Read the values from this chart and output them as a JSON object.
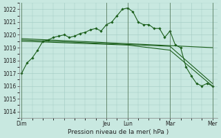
{
  "bg_color": "#c8e8e0",
  "grid_color": "#a0c8c0",
  "line_color": "#1a5e1a",
  "xlabel": "Pression niveau de la mer( hPa )",
  "ylim": [
    1013.5,
    1022.5
  ],
  "yticks": [
    1014,
    1015,
    1016,
    1017,
    1018,
    1019,
    1020,
    1021,
    1022
  ],
  "day_labels": [
    "Dim",
    "",
    "Jeu",
    "Lun",
    "",
    "Mar",
    "",
    "Mer"
  ],
  "day_positions": [
    0,
    8,
    16,
    20,
    24,
    28,
    32,
    36
  ],
  "xlim": [
    -0.5,
    37
  ],
  "vlines": [
    0,
    16,
    20,
    28,
    36
  ],
  "main_x": [
    0,
    1,
    2,
    3,
    4,
    5,
    6,
    7,
    8,
    9,
    10,
    11,
    12,
    13,
    14,
    15,
    16,
    17,
    18,
    19,
    20,
    21,
    22,
    23,
    24,
    25,
    26,
    27,
    28,
    29,
    30,
    31,
    32,
    33,
    34,
    35,
    36
  ],
  "main_y": [
    1017.0,
    1017.8,
    1018.2,
    1018.8,
    1019.5,
    1019.6,
    1019.8,
    1019.9,
    1020.0,
    1019.8,
    1019.9,
    1020.1,
    1020.2,
    1020.4,
    1020.5,
    1020.3,
    1020.8,
    1021.0,
    1021.5,
    1022.0,
    1022.1,
    1021.8,
    1021.0,
    1020.8,
    1020.8,
    1020.5,
    1020.5,
    1019.8,
    1020.3,
    1019.2,
    1019.0,
    1017.5,
    1016.8,
    1016.2,
    1016.0,
    1016.2,
    1016.0
  ],
  "trend1_x": [
    0,
    36
  ],
  "trend1_y": [
    1019.7,
    1019.0
  ],
  "trend2_x": [
    0,
    28,
    36
  ],
  "trend2_y": [
    1019.6,
    1019.1,
    1016.2
  ],
  "trend3_x": [
    0,
    20,
    28,
    36
  ],
  "trend3_y": [
    1019.5,
    1019.2,
    1018.8,
    1016.0
  ],
  "tick_labelsize": 5.5,
  "xlabel_fontsize": 6.5
}
